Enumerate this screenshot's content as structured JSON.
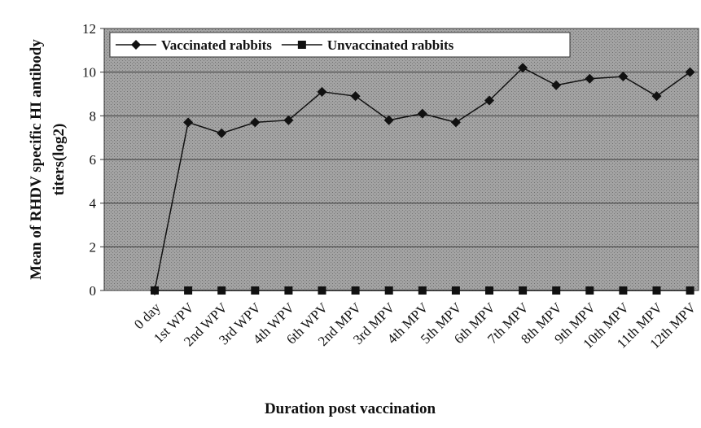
{
  "chart_data": {
    "type": "line",
    "categories": [
      "0 day",
      "1st WPV",
      "2nd WPV",
      "3rd WPV",
      "4th WPV",
      "6th WPV",
      "2nd MPV",
      "3rd MPV",
      "4th MPV",
      "5th MPV",
      "6th MPV",
      "7th MPV",
      "8th MPV",
      "9th MPV",
      "10th MPV",
      "11th MPV",
      "12th MPV"
    ],
    "series": [
      {
        "name": "Vaccinated rabbits",
        "color": "#111111",
        "marker": "diamond",
        "values": [
          0,
          7.7,
          7.2,
          7.7,
          7.8,
          9.1,
          8.9,
          7.8,
          8.1,
          7.7,
          8.7,
          10.2,
          9.4,
          9.7,
          9.8,
          8.9,
          10.0
        ]
      },
      {
        "name": "Unvaccinated rabbits",
        "color": "#111111",
        "marker": "square",
        "values": [
          0,
          0,
          0,
          0,
          0,
          0,
          0,
          0,
          0,
          0,
          0,
          0,
          0,
          0,
          0,
          0,
          0
        ]
      }
    ],
    "ylim": [
      0,
      12
    ],
    "yticks": [
      0,
      2,
      4,
      6,
      8,
      10,
      12
    ],
    "grid": true,
    "xlabel": "Duration post vaccination",
    "ylabel": [
      "Mean of RHDV specific HI antibody",
      "titers(log2)"
    ],
    "legend": "top-left"
  }
}
